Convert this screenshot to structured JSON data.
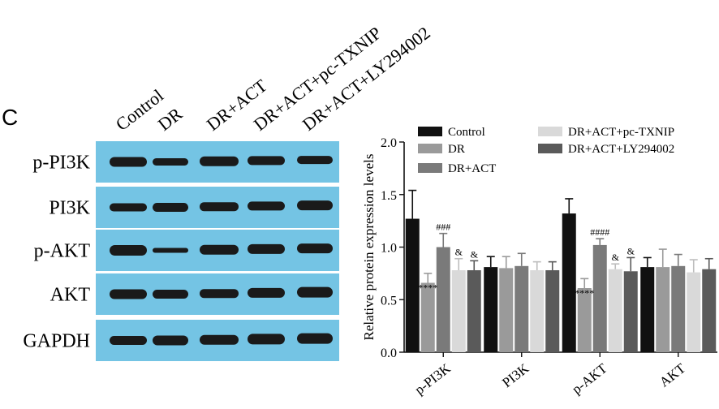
{
  "panel_label": "C",
  "blot": {
    "lanes": [
      "Control",
      "DR",
      "DR+ACT",
      "DR+ACT+pc-TXNIP",
      "DR+ACT+LY294002"
    ],
    "rows": [
      "p-PI3K",
      "PI3K",
      "p-AKT",
      "AKT",
      "GAPDH"
    ],
    "colors": {
      "background": "#74c4e4",
      "band": "#1a1a1a"
    }
  },
  "chart_data": {
    "type": "bar",
    "categories": [
      "p-PI3K",
      "PI3K",
      "p-AKT",
      "AKT"
    ],
    "ylabel": "Relative protein expression levels",
    "xlabel": "",
    "ylim": [
      0,
      2.0
    ],
    "yticks": [
      "0.0",
      "0.5",
      "1.0",
      "1.5",
      "2.0"
    ],
    "legend_position": "top",
    "series": [
      {
        "name": "Control",
        "color": "#111111",
        "values": [
          1.27,
          0.81,
          1.32,
          0.81
        ],
        "errors": [
          0.27,
          0.1,
          0.14,
          0.09
        ]
      },
      {
        "name": "DR",
        "color": "#9a9a9a",
        "values": [
          0.66,
          0.8,
          0.61,
          0.81
        ],
        "errors": [
          0.09,
          0.11,
          0.09,
          0.17
        ]
      },
      {
        "name": "DR+ACT",
        "color": "#7a7a7a",
        "values": [
          1.0,
          0.82,
          1.02,
          0.82
        ],
        "errors": [
          0.13,
          0.12,
          0.06,
          0.11
        ]
      },
      {
        "name": "DR+ACT+pc-TXNIP",
        "color": "#d9d9d9",
        "values": [
          0.78,
          0.78,
          0.79,
          0.76
        ],
        "errors": [
          0.11,
          0.08,
          0.05,
          0.12
        ]
      },
      {
        "name": "DR+ACT+LY294002",
        "color": "#5a5a5a",
        "values": [
          0.78,
          0.78,
          0.77,
          0.79
        ],
        "errors": [
          0.09,
          0.08,
          0.13,
          0.1
        ]
      }
    ],
    "annotations": [
      {
        "category": 0,
        "series": 1,
        "text": "****"
      },
      {
        "category": 0,
        "series": 2,
        "text": "###"
      },
      {
        "category": 0,
        "series": 3,
        "text": "&"
      },
      {
        "category": 0,
        "series": 4,
        "text": "&"
      },
      {
        "category": 2,
        "series": 1,
        "text": "****"
      },
      {
        "category": 2,
        "series": 2,
        "text": "####"
      },
      {
        "category": 2,
        "series": 3,
        "text": "&"
      },
      {
        "category": 2,
        "series": 4,
        "text": "&"
      }
    ]
  }
}
